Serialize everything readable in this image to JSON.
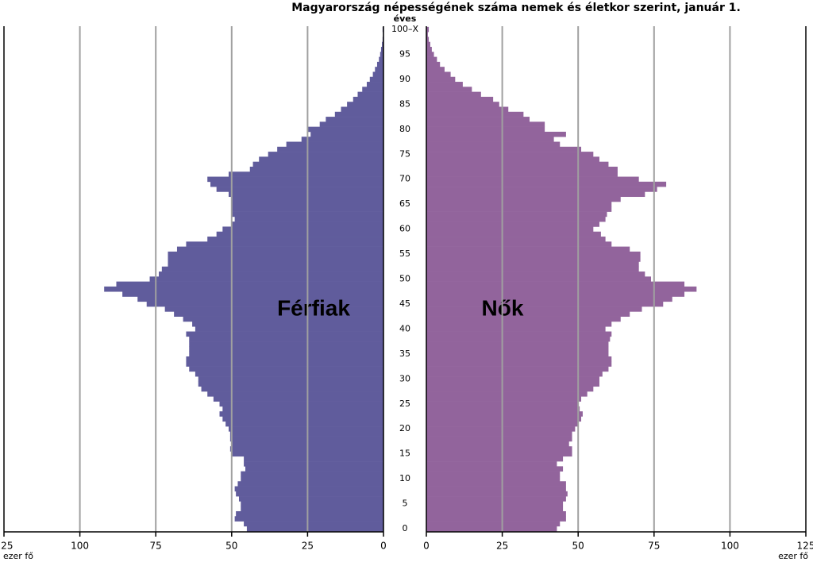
{
  "chart_data": {
    "type": "pyramid",
    "title": "Magyarország népességének száma nemek és életkor szerint, január 1.",
    "y_label": "éves",
    "x_label": "ezer fő",
    "categories": [
      "0",
      null,
      null,
      null,
      null,
      "5",
      null,
      null,
      null,
      null,
      "10",
      null,
      null,
      null,
      null,
      "15",
      null,
      null,
      null,
      null,
      "20",
      null,
      null,
      null,
      null,
      "25",
      null,
      null,
      null,
      null,
      "30",
      null,
      null,
      null,
      null,
      "35",
      null,
      null,
      null,
      null,
      "40",
      null,
      null,
      null,
      null,
      "45",
      null,
      null,
      null,
      null,
      "50",
      null,
      null,
      null,
      null,
      "55",
      null,
      null,
      null,
      null,
      "60",
      null,
      null,
      null,
      null,
      "65",
      null,
      null,
      null,
      null,
      "70",
      null,
      null,
      null,
      null,
      "75",
      null,
      null,
      null,
      null,
      "80",
      null,
      null,
      null,
      null,
      "85",
      null,
      null,
      null,
      null,
      "90",
      null,
      null,
      null,
      null,
      "95",
      null,
      null,
      null,
      null,
      "100–X"
    ],
    "series": [
      {
        "name": "Férfiak",
        "color": "#605c9c",
        "side": "left",
        "values": [
          45,
          46,
          49,
          48.6,
          47,
          47,
          47.6,
          48.6,
          49,
          48,
          47,
          47,
          45.5,
          46,
          46,
          50,
          50.5,
          50,
          50.5,
          50.5,
          51,
          52,
          53,
          54,
          53,
          54,
          56,
          58,
          60,
          61,
          61,
          62,
          64,
          65,
          65,
          64,
          64,
          64,
          64,
          65,
          62,
          63,
          66,
          69,
          72,
          78,
          81,
          86,
          92,
          88,
          77,
          74,
          73,
          71,
          71,
          71,
          68,
          65,
          58,
          55,
          53,
          50,
          49,
          50,
          50,
          50,
          50,
          51,
          55,
          57,
          58,
          51,
          44,
          43,
          41,
          38,
          35,
          32,
          27,
          24,
          25,
          21,
          19,
          16,
          14,
          12,
          10,
          8.5,
          7,
          5.5,
          4.5,
          3.5,
          2.8,
          2.1,
          1.5,
          1.1,
          0.8,
          0.5,
          0.3,
          0.2,
          0.3
        ]
      },
      {
        "name": "Nők",
        "color": "#92649c",
        "side": "right",
        "values": [
          43,
          44,
          46,
          46,
          45,
          45,
          46,
          46.5,
          46,
          46,
          44,
          44,
          45,
          43,
          45,
          48,
          48,
          47,
          48,
          48,
          49,
          50,
          51,
          51.5,
          50.5,
          50,
          51,
          53,
          55,
          57,
          57,
          58,
          60,
          61,
          61,
          60,
          60,
          60,
          60.5,
          61,
          59,
          61,
          64,
          67,
          71,
          78,
          81,
          85,
          89,
          85,
          74,
          72,
          70,
          70,
          70.5,
          70.5,
          67,
          61,
          59,
          57.5,
          55,
          57,
          59,
          59.5,
          61,
          61,
          64,
          72,
          76,
          79,
          70,
          63,
          63,
          60,
          57,
          55,
          51,
          44,
          42,
          46,
          39,
          39,
          34,
          32,
          27,
          24,
          22,
          18,
          15,
          12,
          9.5,
          8,
          6,
          4.5,
          3.5,
          2.5,
          1.8,
          1.3,
          0.8,
          0.5,
          0.8
        ]
      }
    ],
    "xlim": [
      0,
      125
    ],
    "xticks": [
      0,
      25,
      50,
      75,
      100,
      125
    ],
    "grid": true
  }
}
